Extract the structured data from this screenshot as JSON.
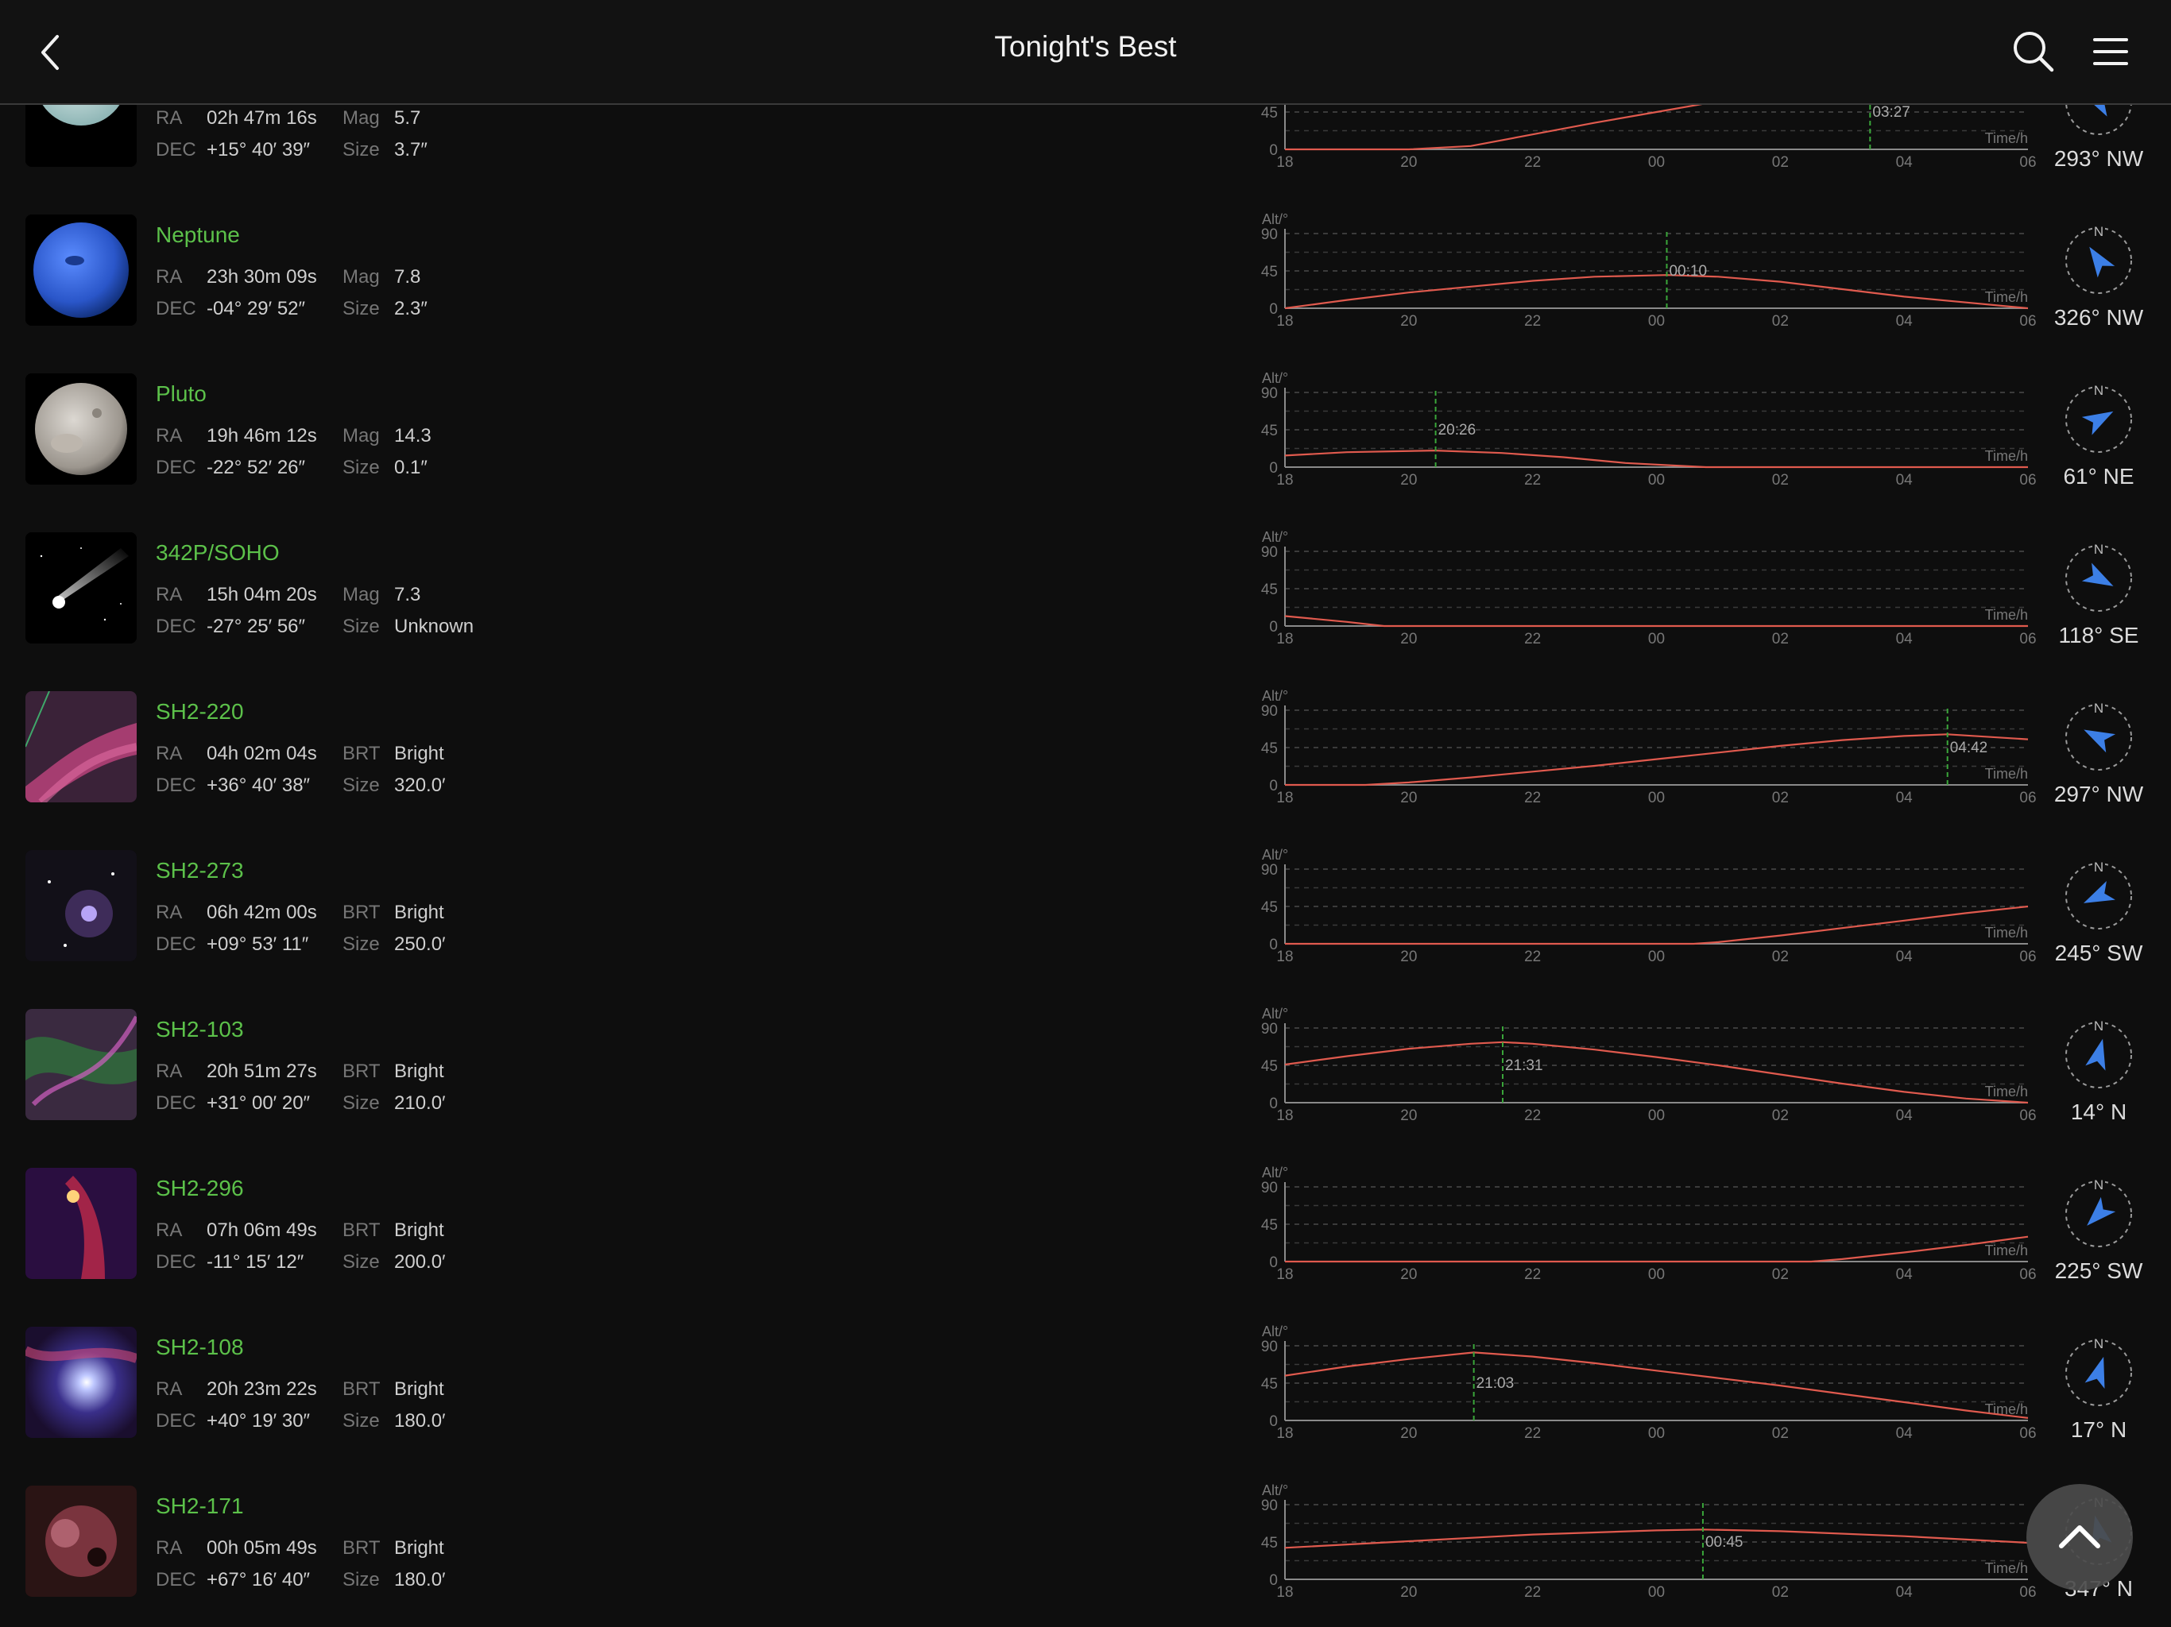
{
  "header": {
    "title": "Tonight's Best"
  },
  "chart_axes": {
    "alt_label": "Alt/°",
    "time_label": "Time/h",
    "y_ticks": [
      "90",
      "45",
      "0"
    ],
    "x_ticks": [
      "18",
      "20",
      "22",
      "00",
      "02",
      "04",
      "06"
    ]
  },
  "colors": {
    "name_green": "#5cc14a",
    "curve_red": "#e05a4e",
    "transit_green": "#3aa63a",
    "arrow_blue": "#3c7fe6"
  },
  "objects": [
    {
      "name": "",
      "icon": "uranus-thumbnail",
      "ra_label": "RA",
      "ra": "02h 47m 16s",
      "dec_label": "DEC",
      "dec": "+15° 40′ 39″",
      "k1": "Mag",
      "v1": "5.7",
      "k2": "Size",
      "v2": "3.7″",
      "transit": "03:27",
      "direction": "293° NW",
      "azimuth": 293,
      "thumb": "uranus",
      "altitude_curve": [
        [
          18,
          0
        ],
        [
          20,
          0
        ],
        [
          21,
          4
        ],
        [
          22,
          18
        ],
        [
          23,
          32
        ],
        [
          0,
          45
        ],
        [
          1,
          58
        ],
        [
          2,
          70
        ],
        [
          3,
          78
        ],
        [
          3.45,
          80
        ],
        [
          4,
          79
        ],
        [
          5,
          70
        ],
        [
          6,
          58
        ]
      ]
    },
    {
      "name": "Neptune",
      "icon": "neptune-thumbnail",
      "ra_label": "RA",
      "ra": "23h 30m 09s",
      "dec_label": "DEC",
      "dec": "-04° 29′ 52″",
      "k1": "Mag",
      "v1": "7.8",
      "k2": "Size",
      "v2": "2.3″",
      "transit": "00:10",
      "direction": "326° NW",
      "azimuth": 326,
      "thumb": "neptune",
      "altitude_curve": [
        [
          18,
          0
        ],
        [
          19,
          10
        ],
        [
          20,
          19
        ],
        [
          21,
          26
        ],
        [
          22,
          33
        ],
        [
          23,
          38
        ],
        [
          0.17,
          40
        ],
        [
          1,
          38
        ],
        [
          2,
          32
        ],
        [
          3,
          23
        ],
        [
          4,
          14
        ],
        [
          5,
          7
        ],
        [
          6,
          0
        ]
      ]
    },
    {
      "name": "Pluto",
      "icon": "pluto-thumbnail",
      "ra_label": "RA",
      "ra": "19h 46m 12s",
      "dec_label": "DEC",
      "dec": "-22° 52′ 26″",
      "k1": "Mag",
      "v1": "14.3",
      "k2": "Size",
      "v2": "0.1″",
      "transit": "20:26",
      "direction": "61° NE",
      "azimuth": 61,
      "thumb": "pluto",
      "altitude_curve": [
        [
          18,
          14
        ],
        [
          19,
          18
        ],
        [
          20.43,
          20
        ],
        [
          21.5,
          17
        ],
        [
          22.5,
          12
        ],
        [
          23.5,
          5
        ],
        [
          0.8,
          0
        ],
        [
          6,
          0
        ]
      ]
    },
    {
      "name": "342P/SOHO",
      "icon": "comet-thumbnail",
      "ra_label": "RA",
      "ra": "15h 04m 20s",
      "dec_label": "DEC",
      "dec": "-27° 25′ 56″",
      "k1": "Mag",
      "v1": "7.3",
      "k2": "Size",
      "v2": "Unknown",
      "transit": "",
      "direction": "118° SE",
      "azimuth": 118,
      "thumb": "comet",
      "altitude_curve": [
        [
          18,
          12
        ],
        [
          19,
          5
        ],
        [
          19.6,
          0
        ],
        [
          6,
          0
        ]
      ]
    },
    {
      "name": "SH2-220",
      "icon": "sh2-220-thumbnail",
      "ra_label": "RA",
      "ra": "04h 02m 04s",
      "dec_label": "DEC",
      "dec": "+36° 40′ 38″",
      "k1": "BRT",
      "v1": "Bright",
      "k2": "Size",
      "v2": "320.0′",
      "transit": "04:42",
      "direction": "297° NW",
      "azimuth": 297,
      "thumb": "sh2220",
      "altitude_curve": [
        [
          18,
          0
        ],
        [
          19.3,
          0
        ],
        [
          20,
          3
        ],
        [
          21,
          9
        ],
        [
          22,
          16
        ],
        [
          23,
          23
        ],
        [
          0,
          31
        ],
        [
          1,
          39
        ],
        [
          2,
          47
        ],
        [
          3,
          54
        ],
        [
          4,
          59
        ],
        [
          4.7,
          61
        ],
        [
          6,
          55
        ]
      ]
    },
    {
      "name": "SH2-273",
      "icon": "sh2-273-thumbnail",
      "ra_label": "RA",
      "ra": "06h 42m 00s",
      "dec_label": "DEC",
      "dec": "+09° 53′ 11″",
      "k1": "BRT",
      "v1": "Bright",
      "k2": "Size",
      "v2": "250.0′",
      "transit": "",
      "direction": "245° SW",
      "azimuth": 245,
      "thumb": "sh2273",
      "altitude_curve": [
        [
          18,
          0
        ],
        [
          0.6,
          0
        ],
        [
          1,
          2
        ],
        [
          2,
          10
        ],
        [
          3,
          19
        ],
        [
          4,
          28
        ],
        [
          5,
          37
        ],
        [
          6,
          45
        ]
      ]
    },
    {
      "name": "SH2-103",
      "icon": "sh2-103-thumbnail",
      "ra_label": "RA",
      "ra": "20h 51m 27s",
      "dec_label": "DEC",
      "dec": "+31° 00′ 20″",
      "k1": "BRT",
      "v1": "Bright",
      "k2": "Size",
      "v2": "210.0′",
      "transit": "21:31",
      "direction": "14° N",
      "azimuth": 14,
      "thumb": "sh2103",
      "altitude_curve": [
        [
          18,
          46
        ],
        [
          19,
          56
        ],
        [
          20,
          65
        ],
        [
          21,
          71
        ],
        [
          21.52,
          73
        ],
        [
          22,
          71
        ],
        [
          23,
          64
        ],
        [
          0,
          55
        ],
        [
          1,
          45
        ],
        [
          2,
          34
        ],
        [
          3,
          23
        ],
        [
          4,
          13
        ],
        [
          5,
          5
        ],
        [
          6,
          0
        ]
      ]
    },
    {
      "name": "SH2-296",
      "icon": "sh2-296-thumbnail",
      "ra_label": "RA",
      "ra": "07h 06m 49s",
      "dec_label": "DEC",
      "dec": "-11° 15′ 12″",
      "k1": "BRT",
      "v1": "Bright",
      "k2": "Size",
      "v2": "200.0′",
      "transit": "",
      "direction": "225° SW",
      "azimuth": 225,
      "thumb": "sh2296",
      "altitude_curve": [
        [
          18,
          0
        ],
        [
          2.5,
          0
        ],
        [
          3,
          3
        ],
        [
          4,
          11
        ],
        [
          5,
          20
        ],
        [
          6,
          30
        ]
      ]
    },
    {
      "name": "SH2-108",
      "icon": "sh2-108-thumbnail",
      "ra_label": "RA",
      "ra": "20h 23m 22s",
      "dec_label": "DEC",
      "dec": "+40° 19′ 30″",
      "k1": "BRT",
      "v1": "Bright",
      "k2": "Size",
      "v2": "180.0′",
      "transit": "21:03",
      "direction": "17° N",
      "azimuth": 17,
      "thumb": "sh2108",
      "altitude_curve": [
        [
          18,
          54
        ],
        [
          19,
          65
        ],
        [
          20,
          74
        ],
        [
          21.05,
          82
        ],
        [
          22,
          77
        ],
        [
          23,
          69
        ],
        [
          0,
          60
        ],
        [
          1,
          51
        ],
        [
          2,
          42
        ],
        [
          3,
          32
        ],
        [
          4,
          22
        ],
        [
          5,
          12
        ],
        [
          6,
          3
        ]
      ]
    },
    {
      "name": "SH2-171",
      "icon": "sh2-171-thumbnail",
      "ra_label": "RA",
      "ra": "00h 05m 49s",
      "dec_label": "DEC",
      "dec": "+67° 16′ 40″",
      "k1": "BRT",
      "v1": "Bright",
      "k2": "Size",
      "v2": "180.0′",
      "transit": "00:45",
      "direction": "347° N",
      "azimuth": 347,
      "thumb": "sh2171",
      "altitude_curve": [
        [
          18,
          38
        ],
        [
          20,
          46
        ],
        [
          22,
          54
        ],
        [
          0,
          59
        ],
        [
          0.75,
          60
        ],
        [
          2,
          58
        ],
        [
          4,
          52
        ],
        [
          6,
          44
        ]
      ]
    }
  ]
}
